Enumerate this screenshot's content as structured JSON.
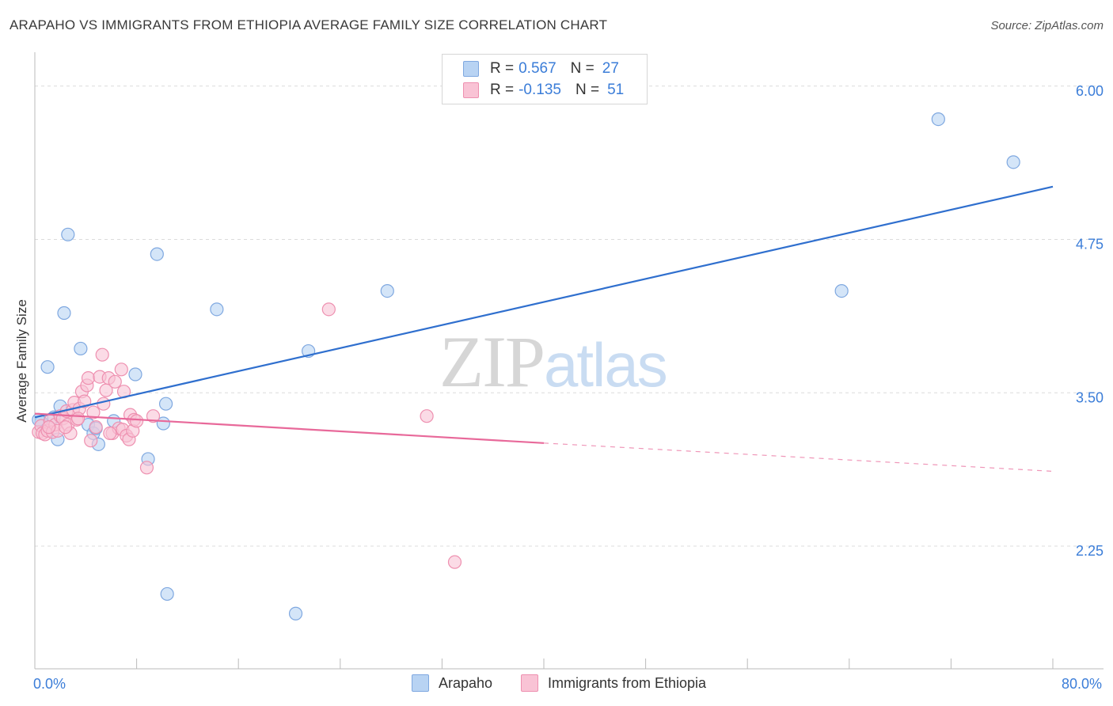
{
  "title": "ARAPAHO VS IMMIGRANTS FROM ETHIOPIA AVERAGE FAMILY SIZE CORRELATION CHART",
  "source": "Source: ZipAtlas.com",
  "watermark": {
    "zip": "ZIP",
    "atlas": "atlas"
  },
  "legend": {
    "rows": [
      {
        "r_label": "R =",
        "r_value": "0.567",
        "n_label": "N =",
        "n_value": "27"
      },
      {
        "r_label": "R =",
        "r_value": "-0.135",
        "n_label": "N =",
        "n_value": "51"
      }
    ]
  },
  "bottom_legend": {
    "series1": "Arapaho",
    "series2": "Immigrants from Ethiopia"
  },
  "colors": {
    "series1_fill": "#b8d3f3",
    "series1_stroke": "#7fa8e0",
    "series1_line": "#2f6fce",
    "series2_fill": "#f9c3d5",
    "series2_stroke": "#ee90b0",
    "series2_line": "#e8699a",
    "tick_label": "#3b7dd8",
    "grid": "#dcdcdc"
  },
  "chart_data": {
    "type": "scatter",
    "title": "ARAPAHO VS IMMIGRANTS FROM ETHIOPIA AVERAGE FAMILY SIZE CORRELATION CHART",
    "xlabel": "",
    "ylabel": "Average Family Size",
    "xlim": [
      0,
      80
    ],
    "ylim": [
      1.25,
      6.25
    ],
    "x_tick_labels": [
      {
        "value": 0,
        "label": "0.0%"
      },
      {
        "value": 80,
        "label": "80.0%"
      }
    ],
    "y_ticks": [
      {
        "value": 6.0,
        "label": "6.00"
      },
      {
        "value": 4.75,
        "label": "4.75"
      },
      {
        "value": 3.5,
        "label": "3.50"
      },
      {
        "value": 2.25,
        "label": "2.25"
      }
    ],
    "grid": true,
    "series": [
      {
        "name": "Arapaho",
        "R": 0.567,
        "N": 27,
        "points": [
          [
            0.5,
            3.26
          ],
          [
            1.0,
            3.71
          ],
          [
            1.5,
            3.3
          ],
          [
            1.8,
            3.12
          ],
          [
            2.0,
            3.39
          ],
          [
            2.3,
            4.15
          ],
          [
            2.6,
            4.79
          ],
          [
            3.6,
            3.86
          ],
          [
            4.2,
            3.24
          ],
          [
            4.6,
            3.17
          ],
          [
            4.8,
            3.21
          ],
          [
            5.0,
            3.08
          ],
          [
            6.2,
            3.27
          ],
          [
            7.9,
            3.65
          ],
          [
            8.9,
            2.96
          ],
          [
            9.6,
            4.63
          ],
          [
            10.1,
            3.25
          ],
          [
            10.3,
            3.41
          ],
          [
            10.4,
            1.86
          ],
          [
            14.3,
            4.18
          ],
          [
            20.5,
            1.7
          ],
          [
            21.5,
            3.84
          ],
          [
            27.7,
            4.33
          ],
          [
            63.4,
            4.33
          ],
          [
            71.0,
            5.73
          ],
          [
            76.9,
            5.38
          ],
          [
            0.3,
            3.28
          ]
        ],
        "trend": {
          "x": [
            0,
            80
          ],
          "y": [
            3.3,
            5.18
          ],
          "style": "solid"
        }
      },
      {
        "name": "Immigrants from Ethiopia",
        "R": -0.135,
        "N": 51,
        "points": [
          [
            0.3,
            3.18
          ],
          [
            0.5,
            3.23
          ],
          [
            0.6,
            3.17
          ],
          [
            0.8,
            3.16
          ],
          [
            1.0,
            3.19
          ],
          [
            1.2,
            3.27
          ],
          [
            1.4,
            3.18
          ],
          [
            1.6,
            3.24
          ],
          [
            1.8,
            3.19
          ],
          [
            2.0,
            3.31
          ],
          [
            2.2,
            3.29
          ],
          [
            2.5,
            3.35
          ],
          [
            2.6,
            3.24
          ],
          [
            2.8,
            3.17
          ],
          [
            3.0,
            3.36
          ],
          [
            3.1,
            3.42
          ],
          [
            3.3,
            3.28
          ],
          [
            3.5,
            3.37
          ],
          [
            3.7,
            3.51
          ],
          [
            3.9,
            3.43
          ],
          [
            4.1,
            3.56
          ],
          [
            4.2,
            3.62
          ],
          [
            4.4,
            3.11
          ],
          [
            4.6,
            3.34
          ],
          [
            4.8,
            3.22
          ],
          [
            5.1,
            3.63
          ],
          [
            5.3,
            3.81
          ],
          [
            5.4,
            3.41
          ],
          [
            5.6,
            3.52
          ],
          [
            5.8,
            3.62
          ],
          [
            6.1,
            3.17
          ],
          [
            6.3,
            3.59
          ],
          [
            6.6,
            3.21
          ],
          [
            6.8,
            3.69
          ],
          [
            6.9,
            3.2
          ],
          [
            7.0,
            3.51
          ],
          [
            7.2,
            3.15
          ],
          [
            7.4,
            3.12
          ],
          [
            7.5,
            3.32
          ],
          [
            7.7,
            3.19
          ],
          [
            7.8,
            3.28
          ],
          [
            8.0,
            3.27
          ],
          [
            8.8,
            2.89
          ],
          [
            9.3,
            3.31
          ],
          [
            23.1,
            4.18
          ],
          [
            30.8,
            3.31
          ],
          [
            33.0,
            2.12
          ],
          [
            1.1,
            3.22
          ],
          [
            2.4,
            3.22
          ],
          [
            3.4,
            3.29
          ],
          [
            5.9,
            3.17
          ]
        ],
        "trend": {
          "x": [
            0,
            40
          ],
          "y": [
            3.33,
            3.09
          ],
          "style": "solid"
        },
        "trend_extension": {
          "x": [
            40,
            80
          ],
          "y": [
            3.09,
            2.86
          ],
          "style": "dashed"
        }
      }
    ]
  }
}
